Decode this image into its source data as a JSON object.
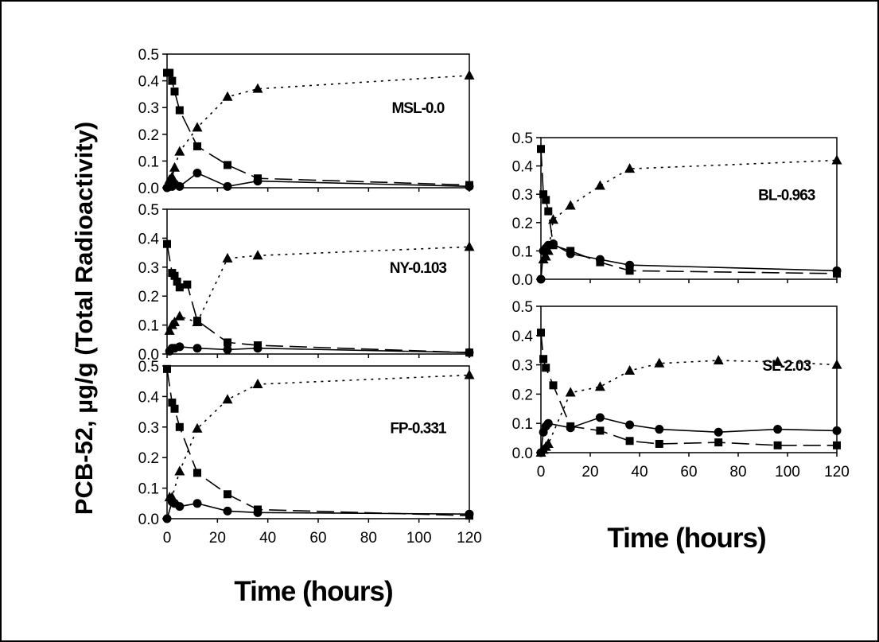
{
  "figure": {
    "ylabel": "PCB-52, µg/g (Total Radioactivity)",
    "xlabel": "Time (hours)"
  },
  "chart_data": [
    {
      "type": "line",
      "title": "MSL-0.0",
      "xlim": [
        0,
        120
      ],
      "ylim": [
        0,
        0.5
      ],
      "xticks": [
        0,
        20,
        40,
        60,
        80,
        100,
        120
      ],
      "yticks": [
        "0.0",
        "0.1",
        "0.2",
        "0.3",
        "0.4",
        "0.5"
      ],
      "x_tick_labels_shown": false,
      "series": [
        {
          "marker": "square",
          "style": "dashed",
          "points": [
            [
              0,
              0.43
            ],
            [
              1,
              0.43
            ],
            [
              2,
              0.4
            ],
            [
              3,
              0.36
            ],
            [
              5,
              0.29
            ],
            [
              12,
              0.155
            ],
            [
              24,
              0.085
            ],
            [
              36,
              0.035
            ],
            [
              120,
              0.01
            ]
          ]
        },
        {
          "marker": "triangle",
          "style": "dotted",
          "points": [
            [
              1,
              0.03
            ],
            [
              2,
              0.04
            ],
            [
              3,
              0.075
            ],
            [
              5,
              0.135
            ],
            [
              12,
              0.225
            ],
            [
              24,
              0.34
            ],
            [
              36,
              0.37
            ],
            [
              120,
              0.42
            ]
          ]
        },
        {
          "marker": "circle",
          "style": "solid",
          "points": [
            [
              0,
              0.0
            ],
            [
              1,
              0.005
            ],
            [
              2,
              0.005
            ],
            [
              3,
              0.015
            ],
            [
              5,
              0.005
            ],
            [
              12,
              0.055
            ],
            [
              24,
              0.005
            ],
            [
              36,
              0.025
            ],
            [
              120,
              0.005
            ]
          ]
        }
      ]
    },
    {
      "type": "line",
      "title": "NY-0.103",
      "xlim": [
        0,
        120
      ],
      "ylim": [
        0,
        0.5
      ],
      "xticks": [
        0,
        20,
        40,
        60,
        80,
        100,
        120
      ],
      "yticks": [
        "0.0",
        "0.1",
        "0.2",
        "0.3",
        "0.4",
        "0.5"
      ],
      "x_tick_labels_shown": false,
      "series": [
        {
          "marker": "square",
          "style": "dashed",
          "points": [
            [
              0,
              0.38
            ],
            [
              2,
              0.28
            ],
            [
              3,
              0.27
            ],
            [
              4,
              0.25
            ],
            [
              5,
              0.23
            ],
            [
              8,
              0.24
            ],
            [
              12,
              0.115
            ],
            [
              24,
              0.04
            ],
            [
              36,
              0.03
            ],
            [
              120,
              0.005
            ]
          ]
        },
        {
          "marker": "triangle",
          "style": "dotted",
          "points": [
            [
              1,
              0.08
            ],
            [
              2,
              0.1
            ],
            [
              3,
              0.11
            ],
            [
              5,
              0.13
            ],
            [
              12,
              0.11
            ],
            [
              24,
              0.33
            ],
            [
              36,
              0.34
            ],
            [
              120,
              0.37
            ]
          ]
        },
        {
          "marker": "circle",
          "style": "solid",
          "points": [
            [
              1,
              0.01
            ],
            [
              2,
              0.02
            ],
            [
              3,
              0.02
            ],
            [
              5,
              0.025
            ],
            [
              12,
              0.02
            ],
            [
              24,
              0.015
            ],
            [
              36,
              0.02
            ],
            [
              120,
              0.005
            ]
          ]
        }
      ]
    },
    {
      "type": "line",
      "title": "FP-0.331",
      "xlim": [
        0,
        120
      ],
      "ylim": [
        0,
        0.5
      ],
      "xticks": [
        0,
        20,
        40,
        60,
        80,
        100,
        120
      ],
      "yticks": [
        "0.0",
        "0.1",
        "0.2",
        "0.3",
        "0.4",
        "0.5"
      ],
      "x_tick_labels_shown": true,
      "series": [
        {
          "marker": "square",
          "style": "dashed",
          "points": [
            [
              0,
              0.49
            ],
            [
              2,
              0.38
            ],
            [
              3,
              0.36
            ],
            [
              5,
              0.3
            ],
            [
              12,
              0.15
            ],
            [
              24,
              0.08
            ],
            [
              36,
              0.03
            ],
            [
              120,
              0.01
            ]
          ]
        },
        {
          "marker": "triangle",
          "style": "dotted",
          "points": [
            [
              1,
              0.07
            ],
            [
              2,
              0.07
            ],
            [
              5,
              0.155
            ],
            [
              12,
              0.295
            ],
            [
              24,
              0.39
            ],
            [
              36,
              0.44
            ],
            [
              120,
              0.47
            ]
          ]
        },
        {
          "marker": "circle",
          "style": "solid",
          "points": [
            [
              0,
              0.0
            ],
            [
              2,
              0.055
            ],
            [
              3,
              0.05
            ],
            [
              5,
              0.04
            ],
            [
              12,
              0.05
            ],
            [
              24,
              0.025
            ],
            [
              36,
              0.02
            ],
            [
              120,
              0.015
            ]
          ]
        }
      ]
    },
    {
      "type": "line",
      "title": "BL-0.963",
      "xlim": [
        0,
        120
      ],
      "ylim": [
        0,
        0.5
      ],
      "xticks": [
        0,
        20,
        40,
        60,
        80,
        100,
        120
      ],
      "yticks": [
        "0.0",
        "0.1",
        "0.2",
        "0.3",
        "0.4",
        "0.5"
      ],
      "x_tick_labels_shown": false,
      "series": [
        {
          "marker": "square",
          "style": "dashed",
          "points": [
            [
              0,
              0.46
            ],
            [
              1,
              0.3
            ],
            [
              2,
              0.28
            ],
            [
              3,
              0.24
            ],
            [
              5,
              0.12
            ],
            [
              12,
              0.1
            ],
            [
              24,
              0.06
            ],
            [
              36,
              0.03
            ],
            [
              120,
              0.02
            ]
          ]
        },
        {
          "marker": "triangle",
          "style": "dotted",
          "points": [
            [
              1,
              0.07
            ],
            [
              2,
              0.08
            ],
            [
              3,
              0.1
            ],
            [
              5,
              0.21
            ],
            [
              12,
              0.26
            ],
            [
              24,
              0.33
            ],
            [
              36,
              0.39
            ],
            [
              120,
              0.42
            ]
          ]
        },
        {
          "marker": "circle",
          "style": "solid",
          "points": [
            [
              0,
              0.0
            ],
            [
              1,
              0.1
            ],
            [
              2,
              0.11
            ],
            [
              3,
              0.12
            ],
            [
              5,
              0.125
            ],
            [
              12,
              0.09
            ],
            [
              24,
              0.07
            ],
            [
              36,
              0.05
            ],
            [
              120,
              0.03
            ]
          ]
        }
      ]
    },
    {
      "type": "line",
      "title": "SL-2.03",
      "xlim": [
        0,
        120
      ],
      "ylim": [
        0,
        0.5
      ],
      "xticks": [
        0,
        20,
        40,
        60,
        80,
        100,
        120
      ],
      "yticks": [
        "0.0",
        "0.1",
        "0.2",
        "0.3",
        "0.4",
        "0.5"
      ],
      "x_tick_labels_shown": true,
      "series": [
        {
          "marker": "square",
          "style": "dashed",
          "points": [
            [
              0,
              0.41
            ],
            [
              1,
              0.32
            ],
            [
              2,
              0.29
            ],
            [
              5,
              0.23
            ],
            [
              12,
              0.09
            ],
            [
              24,
              0.075
            ],
            [
              36,
              0.04
            ],
            [
              48,
              0.03
            ],
            [
              72,
              0.035
            ],
            [
              96,
              0.025
            ],
            [
              120,
              0.025
            ]
          ]
        },
        {
          "marker": "triangle",
          "style": "dotted",
          "points": [
            [
              0,
              0.0
            ],
            [
              1,
              0.01
            ],
            [
              2,
              0.02
            ],
            [
              3,
              0.03
            ],
            [
              12,
              0.205
            ],
            [
              24,
              0.225
            ],
            [
              36,
              0.28
            ],
            [
              48,
              0.305
            ],
            [
              72,
              0.315
            ],
            [
              96,
              0.31
            ],
            [
              120,
              0.3
            ]
          ]
        },
        {
          "marker": "circle",
          "style": "solid",
          "points": [
            [
              0,
              0.0
            ],
            [
              1,
              0.07
            ],
            [
              2,
              0.09
            ],
            [
              3,
              0.1
            ],
            [
              12,
              0.085
            ],
            [
              24,
              0.12
            ],
            [
              36,
              0.095
            ],
            [
              48,
              0.08
            ],
            [
              72,
              0.07
            ],
            [
              96,
              0.08
            ],
            [
              120,
              0.075
            ]
          ]
        }
      ]
    }
  ]
}
